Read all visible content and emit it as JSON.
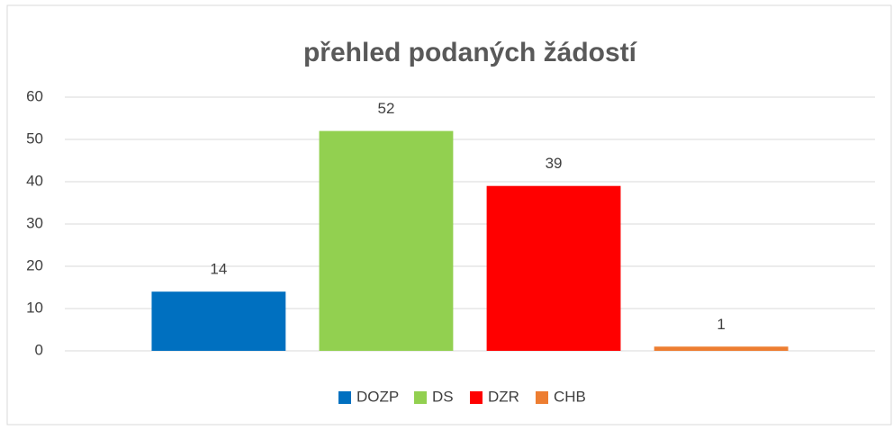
{
  "chart_data": {
    "type": "bar",
    "title": "přehled podaných žádostí",
    "categories": [
      null
    ],
    "series": [
      {
        "name": "DOZP",
        "color": "#0070c0",
        "values": [
          14
        ]
      },
      {
        "name": "DS",
        "color": "#92d050",
        "values": [
          52
        ]
      },
      {
        "name": "DZR",
        "color": "#ff0000",
        "values": [
          39
        ]
      },
      {
        "name": "CHB",
        "color": "#ed7d31",
        "values": [
          1
        ]
      }
    ],
    "ylim": [
      0,
      60
    ],
    "yticks": [
      0,
      10,
      20,
      30,
      40,
      50,
      60
    ],
    "grid": true,
    "legend": "bottom"
  }
}
